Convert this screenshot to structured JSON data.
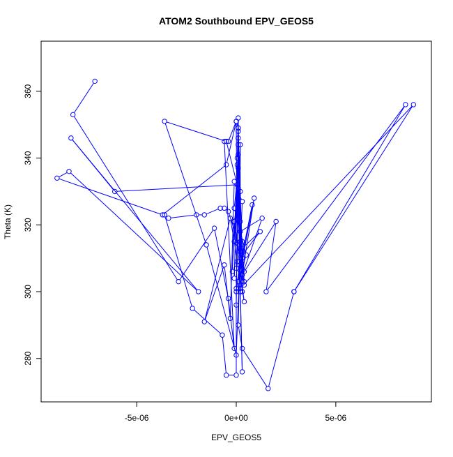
{
  "chart_data": {
    "type": "line",
    "title": "ATOM2 Southbound EPV_GEOS5",
    "xlabel": "EPV_GEOS5",
    "ylabel": "Theta (K)",
    "xlim": [
      -9.8e-06,
      9.8e-06
    ],
    "ylim": [
      267,
      375
    ],
    "x_ticks": [
      -5e-06,
      0,
      5e-06
    ],
    "x_tick_labels": [
      "-5e-06",
      "0e+00",
      "5e-06"
    ],
    "y_ticks": [
      280,
      300,
      320,
      340,
      360
    ],
    "y_tick_labels": [
      "280",
      "300",
      "320",
      "340",
      "360"
    ],
    "grid": false,
    "legend": "none",
    "colors": {
      "series": "#0000ff",
      "axes": "#000000",
      "background": "#ffffff"
    },
    "series": [
      {
        "marker": "open-circle",
        "points": [
          [
            -7.1e-06,
            363
          ],
          [
            -8.2e-06,
            353
          ],
          [
            -2.9e-06,
            303
          ],
          [
            -1.1e-06,
            319
          ],
          [
            -4e-07,
            298
          ],
          [
            -1e-07,
            283
          ],
          [
            -6e-07,
            345
          ],
          [
            -4e-07,
            345
          ],
          [
            0.0,
            351
          ],
          [
            1e-07,
            349
          ],
          [
            3e-07,
            310
          ],
          [
            2e-07,
            330
          ],
          [
            5e-08,
            340
          ],
          [
            1e-07,
            352
          ],
          [
            2e-07,
            300
          ],
          [
            3e-07,
            276
          ],
          [
            1e-07,
            328
          ],
          [
            -1e-07,
            321
          ],
          [
            4e-07,
            302
          ],
          [
            3e-07,
            315
          ],
          [
            0.0,
            300
          ],
          [
            0.0,
            275
          ],
          [
            -5e-07,
            275
          ],
          [
            -7e-07,
            287
          ],
          [
            -2.2e-06,
            295
          ],
          [
            -3.6e-06,
            323
          ],
          [
            -3.4e-06,
            322
          ],
          [
            -2e-06,
            323
          ],
          [
            -1.6e-06,
            323
          ],
          [
            -8e-07,
            325
          ],
          [
            -6e-07,
            325
          ],
          [
            -4e-07,
            324
          ],
          [
            2e-07,
            313
          ],
          [
            1e-07,
            337
          ],
          [
            -1e-07,
            325
          ],
          [
            5e-07,
            311
          ],
          [
            1e-07,
            303
          ],
          [
            9e-07,
            328
          ],
          [
            3e-07,
            305
          ],
          [
            1e-07,
            331
          ],
          [
            0.0,
            301
          ],
          [
            8e-07,
            326
          ],
          [
            2e-07,
            308
          ],
          [
            4e-07,
            306
          ],
          [
            2e-07,
            318
          ],
          [
            1.3e-06,
            322
          ],
          [
            3e-07,
            305
          ],
          [
            2e-06,
            321
          ],
          [
            1.5e-06,
            300
          ],
          [
            8.5e-06,
            356
          ],
          [
            2.9e-06,
            300
          ],
          [
            1.6e-06,
            271
          ],
          [
            3e-07,
            283
          ],
          [
            1e-07,
            290
          ],
          [
            2e-07,
            315
          ],
          [
            1e-07,
            346
          ],
          [
            2e-07,
            302
          ],
          [
            5e-08,
            338
          ],
          [
            -1e-07,
            304
          ],
          [
            1e-07,
            341
          ],
          [
            -2e-07,
            306
          ],
          [
            -1e-07,
            321
          ],
          [
            4e-07,
            297
          ],
          [
            -3e-07,
            322
          ],
          [
            -1.6e-06,
            291
          ],
          [
            -6e-07,
            308
          ],
          [
            -3e-07,
            292
          ],
          [
            -1e-07,
            333
          ],
          [
            3e-07,
            327
          ],
          [
            0.0,
            281
          ],
          [
            -1.5e-06,
            314
          ],
          [
            -3.6e-06,
            351
          ],
          [
            -5e-07,
            345
          ],
          [
            5e-08,
            332
          ],
          [
            -6.1e-06,
            330
          ],
          [
            -8.3e-06,
            346
          ],
          [
            -1.9e-06,
            300
          ],
          [
            -8.4e-06,
            336
          ],
          [
            -9e-06,
            334
          ],
          [
            -3.7e-06,
            323
          ],
          [
            -5e-07,
            338
          ],
          [
            0.0,
            351
          ],
          [
            5e-08,
            309
          ],
          [
            1.2e-06,
            318
          ],
          [
            3e-07,
            313
          ],
          [
            3e-07,
            300
          ],
          [
            2e-07,
            321
          ],
          [
            4e-07,
            303
          ],
          [
            0.0,
            307
          ],
          [
            2e-07,
            344
          ],
          [
            2e-07,
            300
          ],
          [
            1e-07,
            348
          ],
          [
            2e-07,
            312
          ],
          [
            -1e-07,
            315
          ],
          [
            1e-07,
            344
          ],
          [
            0.0,
            296
          ],
          [
            1e-07,
            349
          ],
          [
            2e-07,
            301
          ],
          [
            8.9e-06,
            356
          ],
          [
            2.9e-06,
            300
          ]
        ]
      }
    ]
  }
}
